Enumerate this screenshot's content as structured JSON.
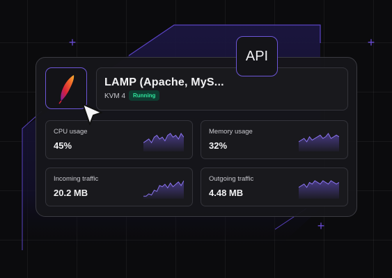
{
  "server": {
    "title": "LAMP (Apache, MyS...",
    "plan": "KVM 4",
    "status": "Running",
    "status_color": "#2ee59d",
    "logo_icon": "apache-feather-icon"
  },
  "api_badge": "API",
  "metrics": [
    {
      "label": "CPU usage",
      "value": "45%",
      "spark": [
        4,
        5,
        6,
        4,
        7,
        8,
        6,
        7,
        5,
        8,
        9,
        7,
        8,
        6,
        9,
        7
      ]
    },
    {
      "label": "Memory usage",
      "value": "32%",
      "spark": [
        5,
        6,
        7,
        5,
        8,
        6,
        7,
        8,
        9,
        7,
        8,
        10,
        7,
        8,
        9,
        8
      ]
    },
    {
      "label": "Incoming traffic",
      "value": "20.2 MB",
      "spark": [
        1,
        1,
        3,
        2,
        6,
        5,
        10,
        9,
        11,
        8,
        12,
        9,
        11,
        13,
        10,
        14
      ]
    },
    {
      "label": "Outgoing traffic",
      "value": "4.48 MB",
      "spark": [
        6,
        7,
        8,
        6,
        9,
        8,
        10,
        9,
        8,
        10,
        9,
        8,
        10,
        9,
        8,
        9
      ]
    }
  ],
  "accent_color": "#6d56d8"
}
